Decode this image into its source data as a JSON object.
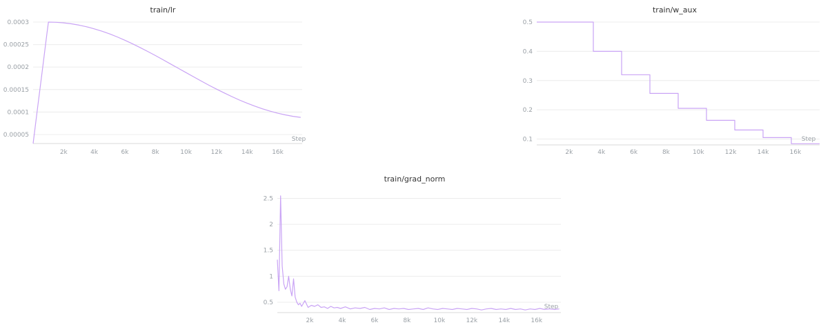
{
  "chart_data": [
    {
      "id": "lr",
      "type": "line",
      "title": "train/lr",
      "xlabel": "Step",
      "color": "#c9a3f5",
      "xlim": [
        0,
        17600
      ],
      "ylim": [
        3e-05,
        0.0003
      ],
      "x_ticks": [
        2000,
        4000,
        6000,
        8000,
        10000,
        12000,
        14000,
        16000
      ],
      "x_tick_labels": [
        "2k",
        "4k",
        "6k",
        "8k",
        "10k",
        "12k",
        "14k",
        "16k"
      ],
      "y_ticks": [
        5e-05,
        0.0001,
        0.00015,
        0.0002,
        0.00025,
        0.0003
      ],
      "y_tick_labels": [
        "0.00005",
        "0.0001",
        "0.00015",
        "0.0002",
        "0.00025",
        "0.0003"
      ],
      "grid": true,
      "series": [
        {
          "x": [
            0,
            300,
            600,
            900,
            1000,
            1500,
            2000,
            2500,
            3000,
            3500,
            4000,
            4500,
            5000,
            5500,
            6000,
            6500,
            7000,
            7500,
            8000,
            8500,
            9000,
            9500,
            10000,
            10500,
            11000,
            11500,
            12000,
            12500,
            13000,
            13500,
            14000,
            14500,
            15000,
            15500,
            16000,
            16500,
            17000,
            17500
          ],
          "y": [
            3e-05,
            0.000111,
            0.000192,
            0.000273,
            0.0003,
            0.0002996,
            0.0002983,
            0.0002962,
            0.0002933,
            0.0002896,
            0.000285,
            0.0002797,
            0.0002737,
            0.000267,
            0.0002597,
            0.0002518,
            0.0002434,
            0.0002347,
            0.0002256,
            0.0002163,
            0.0002068,
            0.0001972,
            0.0001877,
            0.0001782,
            0.0001689,
            0.0001597,
            0.0001509,
            0.0001424,
            0.0001343,
            0.0001267,
            0.0001196,
            0.0001131,
            0.0001072,
            0.000102,
            9.74e-05,
            9.36e-05,
            9.05e-05,
            8.82e-05
          ]
        }
      ]
    },
    {
      "id": "waux",
      "type": "line",
      "title": "train/w_aux",
      "xlabel": "Step",
      "color": "#c9a3f5",
      "xlim": [
        0,
        17500
      ],
      "ylim": [
        0.08,
        0.5
      ],
      "x_ticks": [
        2000,
        4000,
        6000,
        8000,
        10000,
        12000,
        14000,
        16000
      ],
      "x_tick_labels": [
        "2k",
        "4k",
        "6k",
        "8k",
        "10k",
        "12k",
        "14k",
        "16k"
      ],
      "y_ticks": [
        0.1,
        0.2,
        0.3,
        0.4,
        0.5
      ],
      "y_tick_labels": [
        "0.1",
        "0.2",
        "0.3",
        "0.4",
        "0.5"
      ],
      "grid": true,
      "series": [
        {
          "x": [
            0,
            3500,
            3500,
            5250,
            5250,
            7000,
            7000,
            8750,
            8750,
            10500,
            10500,
            12250,
            12250,
            14000,
            14000,
            15750,
            15750,
            17500
          ],
          "y": [
            0.5,
            0.5,
            0.4,
            0.4,
            0.32,
            0.32,
            0.256,
            0.256,
            0.205,
            0.205,
            0.164,
            0.164,
            0.131,
            0.131,
            0.105,
            0.105,
            0.084,
            0.084
          ]
        }
      ]
    },
    {
      "id": "gn",
      "type": "line",
      "title": "train/grad_norm",
      "xlabel": "Step",
      "color": "#c9a3f5",
      "xlim": [
        0,
        17500
      ],
      "ylim": [
        0.3,
        2.6
      ],
      "x_ticks": [
        2000,
        4000,
        6000,
        8000,
        10000,
        12000,
        14000,
        16000
      ],
      "x_tick_labels": [
        "2k",
        "4k",
        "6k",
        "8k",
        "10k",
        "12k",
        "14k",
        "16k"
      ],
      "y_ticks": [
        0.5,
        1,
        1.5,
        2,
        2.5
      ],
      "y_tick_labels": [
        "0.5",
        "1",
        "1.5",
        "2",
        "2.5"
      ],
      "grid": true,
      "series": [
        {
          "x": [
            0,
            100,
            200,
            300,
            400,
            500,
            600,
            700,
            800,
            900,
            1000,
            1100,
            1200,
            1300,
            1400,
            1500,
            1700,
            1900,
            2100,
            2300,
            2500,
            2700,
            2900,
            3100,
            3300,
            3500,
            3700,
            3900,
            4200,
            4500,
            4800,
            5100,
            5400,
            5700,
            6000,
            6300,
            6600,
            6900,
            7200,
            7500,
            7800,
            8100,
            8400,
            8700,
            9000,
            9300,
            9600,
            9900,
            10200,
            10500,
            10800,
            11100,
            11400,
            11700,
            12000,
            12300,
            12600,
            12900,
            13200,
            13500,
            13800,
            14100,
            14400,
            14700,
            15000,
            15300,
            15600,
            15900,
            16200,
            16500,
            16800,
            17100,
            17400
          ],
          "y": [
            1.32,
            0.72,
            2.55,
            1.2,
            0.85,
            0.75,
            0.8,
            1.0,
            0.75,
            0.62,
            0.95,
            0.6,
            0.5,
            0.45,
            0.48,
            0.42,
            0.53,
            0.4,
            0.44,
            0.42,
            0.45,
            0.4,
            0.41,
            0.38,
            0.42,
            0.39,
            0.4,
            0.38,
            0.41,
            0.37,
            0.39,
            0.38,
            0.4,
            0.36,
            0.38,
            0.37,
            0.39,
            0.36,
            0.38,
            0.37,
            0.38,
            0.36,
            0.37,
            0.38,
            0.36,
            0.39,
            0.37,
            0.36,
            0.38,
            0.37,
            0.36,
            0.38,
            0.37,
            0.36,
            0.38,
            0.37,
            0.35,
            0.37,
            0.38,
            0.36,
            0.37,
            0.36,
            0.38,
            0.36,
            0.37,
            0.35,
            0.37,
            0.36,
            0.38,
            0.36,
            0.37,
            0.36,
            0.37
          ]
        }
      ]
    }
  ]
}
